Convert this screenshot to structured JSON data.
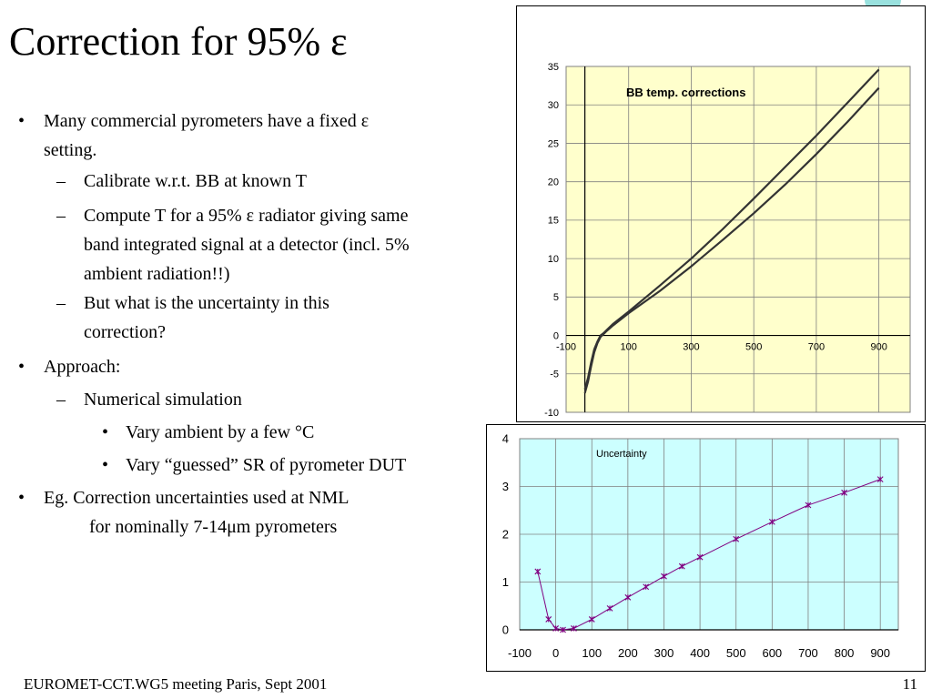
{
  "slide": {
    "title": "Correction for 95% ε",
    "footer_left": "EUROMET-CCT.WG5 meeting Paris, Sept 2001",
    "page_number": "11"
  },
  "bullets": [
    {
      "level": 1,
      "marker": "•",
      "lines": [
        "Many commercial pyrometers have a fixed ε",
        "setting."
      ]
    },
    {
      "level": 2,
      "marker": "–",
      "lines": [
        "Calibrate w.r.t. BB at known T"
      ]
    },
    {
      "level": 2,
      "marker": "–",
      "lines": [
        "Compute T for a 95% ε radiator giving same",
        "band integrated signal at a detector (incl. 5%",
        "ambient radiation!!)"
      ]
    },
    {
      "level": 2,
      "marker": "–",
      "lines": [
        "But what is the uncertainty in this",
        "correction?"
      ]
    },
    {
      "level": 1,
      "marker": "•",
      "lines": [
        "Approach:"
      ]
    },
    {
      "level": 2,
      "marker": "–",
      "lines": [
        "Numerical simulation"
      ]
    },
    {
      "level": 3,
      "marker": "•",
      "lines": [
        "Vary ambient by a few °C"
      ]
    },
    {
      "level": 3,
      "marker": "•",
      "lines": [
        "Vary “guessed” SR of pyrometer DUT"
      ]
    },
    {
      "level": 1,
      "marker": "•",
      "lines": [
        "Eg. Correction uncertainties used at NML",
        "          for nominally 7-14μm pyrometers"
      ]
    }
  ],
  "chart_data": [
    {
      "type": "line",
      "title": "BB temp. corrections",
      "xlabel": "",
      "ylabel": "",
      "xlim": [
        -100,
        1000
      ],
      "ylim": [
        -10,
        35
      ],
      "x_ticks": [
        "-100",
        "100",
        "300",
        "500",
        "700",
        "900"
      ],
      "y_ticks": [
        "-10",
        "-5",
        "0",
        "5",
        "10",
        "15",
        "20",
        "25",
        "30",
        "35"
      ],
      "grid": true,
      "plot_background": "#ffffcc",
      "line_color": "#333333",
      "series": [
        {
          "x": [
            -40,
            -30,
            -20,
            -10,
            0,
            10,
            20,
            30,
            50,
            100,
            200,
            300,
            400,
            500,
            600,
            700,
            800,
            900
          ],
          "y": [
            -7.0,
            -5.5,
            -3.5,
            -1.8,
            -0.8,
            0.0,
            0.3,
            0.7,
            1.5,
            3.1,
            6.5,
            10.0,
            13.8,
            17.8,
            21.9,
            26.0,
            30.3,
            34.6
          ]
        },
        {
          "x": [
            -40,
            -30,
            -20,
            -10,
            0,
            10,
            20,
            30,
            50,
            100,
            200,
            300,
            400,
            500,
            600,
            700,
            800,
            900
          ],
          "y": [
            -7.5,
            -6.0,
            -4.0,
            -2.2,
            -1.0,
            -0.2,
            0.2,
            0.6,
            1.3,
            2.9,
            5.8,
            9.0,
            12.4,
            15.9,
            19.6,
            23.6,
            27.8,
            32.2
          ]
        }
      ]
    },
    {
      "type": "line",
      "title": "Uncertainty",
      "xlabel": "",
      "ylabel": "",
      "xlim": [
        -100,
        950
      ],
      "ylim": [
        0,
        4
      ],
      "x_ticks": [
        "-100",
        "0",
        "100",
        "200",
        "300",
        "400",
        "500",
        "600",
        "700",
        "800",
        "900"
      ],
      "y_ticks": [
        "0",
        "1",
        "2",
        "3",
        "4"
      ],
      "grid": true,
      "plot_background": "#ccffff",
      "line_color": "#800080",
      "series": [
        {
          "x": [
            -50,
            -20,
            0,
            20,
            50,
            100,
            150,
            200,
            250,
            300,
            350,
            400,
            500,
            600,
            700,
            800,
            900
          ],
          "y": [
            1.22,
            0.22,
            0.03,
            0.0,
            0.03,
            0.22,
            0.45,
            0.68,
            0.9,
            1.12,
            1.33,
            1.52,
            1.9,
            2.26,
            2.61,
            2.87,
            3.15
          ]
        }
      ]
    }
  ]
}
